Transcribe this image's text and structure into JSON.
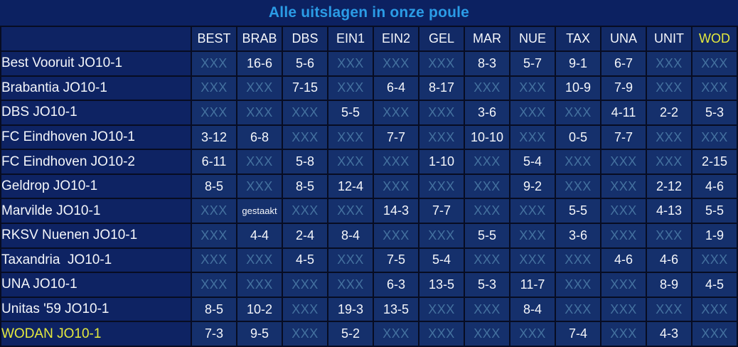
{
  "title": "Alle uitslagen in onze poule",
  "colors": {
    "background": "#0c2161",
    "cell_background": "#15306c",
    "team_column_background": "#0e2363",
    "grid_border": "#070c22",
    "title_accent": "#2b9ce6",
    "highlight_yellow": "#e5ea3d",
    "unplayed_xxx": "#44719f",
    "text": "#f4f6fa"
  },
  "columns": [
    {
      "label": "BEST",
      "highlight": false
    },
    {
      "label": "BRAB",
      "highlight": false
    },
    {
      "label": "DBS",
      "highlight": false
    },
    {
      "label": "EIN1",
      "highlight": false
    },
    {
      "label": "EIN2",
      "highlight": false
    },
    {
      "label": "GEL",
      "highlight": false
    },
    {
      "label": "MAR",
      "highlight": false
    },
    {
      "label": "NUE",
      "highlight": false
    },
    {
      "label": "TAX",
      "highlight": false
    },
    {
      "label": "UNA",
      "highlight": false
    },
    {
      "label": "UNIT",
      "highlight": false
    },
    {
      "label": "WOD",
      "highlight": true
    }
  ],
  "rows": [
    {
      "team": "Best Vooruit JO10-1",
      "highlight": false,
      "cells": [
        "XXX",
        "16-6",
        "5-6",
        "XXX",
        "XXX",
        "XXX",
        "8-3",
        "5-7",
        "9-1",
        "6-7",
        "XXX",
        "XXX"
      ]
    },
    {
      "team": "Brabantia JO10-1",
      "highlight": false,
      "cells": [
        "XXX",
        "XXX",
        "7-15",
        "XXX",
        "6-4",
        "8-17",
        "XXX",
        "XXX",
        "10-9",
        "7-9",
        "XXX",
        "XXX"
      ]
    },
    {
      "team": "DBS JO10-1",
      "highlight": false,
      "cells": [
        "XXX",
        "XXX",
        "XXX",
        "5-5",
        "XXX",
        "XXX",
        "3-6",
        "XXX",
        "XXX",
        "4-11",
        "2-2",
        "5-3"
      ]
    },
    {
      "team": "FC Eindhoven JO10-1",
      "highlight": false,
      "cells": [
        "3-12",
        "6-8",
        "XXX",
        "XXX",
        "7-7",
        "XXX",
        "10-10",
        "XXX",
        "0-5",
        "7-7",
        "XXX",
        "XXX"
      ]
    },
    {
      "team": "FC Eindhoven JO10-2",
      "highlight": false,
      "cells": [
        "6-11",
        "XXX",
        "5-8",
        "XXX",
        "XXX",
        "1-10",
        "XXX",
        "5-4",
        "XXX",
        "XXX",
        "XXX",
        "2-15"
      ]
    },
    {
      "team": "Geldrop JO10-1",
      "highlight": false,
      "cells": [
        "8-5",
        "XXX",
        "8-5",
        "12-4",
        "XXX",
        "XXX",
        "XXX",
        "9-2",
        "XXX",
        "XXX",
        "2-12",
        "4-6"
      ]
    },
    {
      "team": "Marvilde JO10-1",
      "highlight": false,
      "cells": [
        "XXX",
        "gestaakt",
        "XXX",
        "XXX",
        "14-3",
        "7-7",
        "XXX",
        "XXX",
        "5-5",
        "XXX",
        "4-13",
        "5-5"
      ]
    },
    {
      "team": "RKSV Nuenen JO10-1",
      "highlight": false,
      "cells": [
        "XXX",
        "4-4",
        "2-4",
        "8-4",
        "XXX",
        "XXX",
        "5-5",
        "XXX",
        "3-6",
        "XXX",
        "XXX",
        "1-9"
      ]
    },
    {
      "team": "Taxandria  JO10-1",
      "highlight": false,
      "cells": [
        "XXX",
        "XXX",
        "4-5",
        "XXX",
        "7-5",
        "5-4",
        "XXX",
        "XXX",
        "XXX",
        "4-6",
        "4-6",
        "XXX"
      ]
    },
    {
      "team": "UNA JO10-1",
      "highlight": false,
      "cells": [
        "XXX",
        "XXX",
        "XXX",
        "XXX",
        "6-3",
        "13-5",
        "5-3",
        "11-7",
        "XXX",
        "XXX",
        "8-9",
        "4-5"
      ]
    },
    {
      "team": "Unitas '59 JO10-1",
      "highlight": false,
      "cells": [
        "8-5",
        "10-2",
        "XXX",
        "19-3",
        "13-5",
        "XXX",
        "XXX",
        "8-4",
        "XXX",
        "XXX",
        "XXX",
        "XXX"
      ]
    },
    {
      "team": "WODAN JO10-1",
      "highlight": true,
      "cells": [
        "7-3",
        "9-5",
        "XXX",
        "5-2",
        "XXX",
        "XXX",
        "XXX",
        "XXX",
        "7-4",
        "XXX",
        "4-3",
        "XXX"
      ]
    }
  ],
  "chart_data": {
    "type": "table",
    "title": "Alle uitslagen in onze poule",
    "column_headers": [
      "BEST",
      "BRAB",
      "DBS",
      "EIN1",
      "EIN2",
      "GEL",
      "MAR",
      "NUE",
      "TAX",
      "UNA",
      "UNIT",
      "WOD"
    ],
    "row_headers": [
      "Best Vooruit JO10-1",
      "Brabantia JO10-1",
      "DBS JO10-1",
      "FC Eindhoven JO10-1",
      "FC Eindhoven JO10-2",
      "Geldrop JO10-1",
      "Marvilde JO10-1",
      "RKSV Nuenen JO10-1",
      "Taxandria  JO10-1",
      "UNA JO10-1",
      "Unitas '59 JO10-1",
      "WODAN JO10-1"
    ],
    "values": [
      [
        "XXX",
        "16-6",
        "5-6",
        "XXX",
        "XXX",
        "XXX",
        "8-3",
        "5-7",
        "9-1",
        "6-7",
        "XXX",
        "XXX"
      ],
      [
        "XXX",
        "XXX",
        "7-15",
        "XXX",
        "6-4",
        "8-17",
        "XXX",
        "XXX",
        "10-9",
        "7-9",
        "XXX",
        "XXX"
      ],
      [
        "XXX",
        "XXX",
        "XXX",
        "5-5",
        "XXX",
        "XXX",
        "3-6",
        "XXX",
        "XXX",
        "4-11",
        "2-2",
        "5-3"
      ],
      [
        "3-12",
        "6-8",
        "XXX",
        "XXX",
        "7-7",
        "XXX",
        "10-10",
        "XXX",
        "0-5",
        "7-7",
        "XXX",
        "XXX"
      ],
      [
        "6-11",
        "XXX",
        "5-8",
        "XXX",
        "XXX",
        "1-10",
        "XXX",
        "5-4",
        "XXX",
        "XXX",
        "XXX",
        "2-15"
      ],
      [
        "8-5",
        "XXX",
        "8-5",
        "12-4",
        "XXX",
        "XXX",
        "XXX",
        "9-2",
        "XXX",
        "XXX",
        "2-12",
        "4-6"
      ],
      [
        "XXX",
        "gestaakt",
        "XXX",
        "XXX",
        "14-3",
        "7-7",
        "XXX",
        "XXX",
        "5-5",
        "XXX",
        "4-13",
        "5-5"
      ],
      [
        "XXX",
        "4-4",
        "2-4",
        "8-4",
        "XXX",
        "XXX",
        "5-5",
        "XXX",
        "3-6",
        "XXX",
        "XXX",
        "1-9"
      ],
      [
        "XXX",
        "XXX",
        "4-5",
        "XXX",
        "7-5",
        "5-4",
        "XXX",
        "XXX",
        "XXX",
        "4-6",
        "4-6",
        "XXX"
      ],
      [
        "XXX",
        "XXX",
        "XXX",
        "XXX",
        "6-3",
        "13-5",
        "5-3",
        "11-7",
        "XXX",
        "XXX",
        "8-9",
        "4-5"
      ],
      [
        "8-5",
        "10-2",
        "XXX",
        "19-3",
        "13-5",
        "XXX",
        "XXX",
        "8-4",
        "XXX",
        "XXX",
        "XXX",
        "XXX"
      ],
      [
        "7-3",
        "9-5",
        "XXX",
        "5-2",
        "XXX",
        "XXX",
        "XXX",
        "XXX",
        "7-4",
        "XXX",
        "4-3",
        "XXX"
      ]
    ],
    "notes": "XXX = not played / no result; 'gestaakt' = match abandoned; highlighted team (yellow) is WODAN JO10-1 / column WOD"
  }
}
